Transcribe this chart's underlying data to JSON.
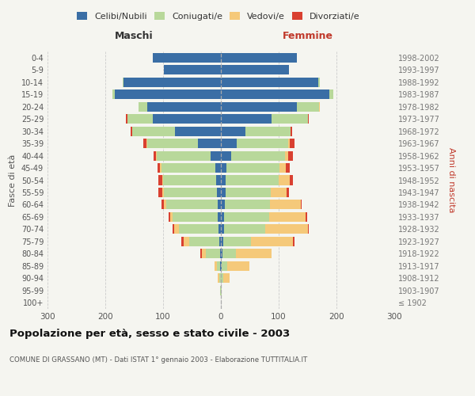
{
  "age_groups": [
    "100+",
    "95-99",
    "90-94",
    "85-89",
    "80-84",
    "75-79",
    "70-74",
    "65-69",
    "60-64",
    "55-59",
    "50-54",
    "45-49",
    "40-44",
    "35-39",
    "30-34",
    "25-29",
    "20-24",
    "15-19",
    "10-14",
    "5-9",
    "0-4"
  ],
  "birth_years": [
    "≤ 1902",
    "1903-1907",
    "1908-1912",
    "1913-1917",
    "1918-1922",
    "1923-1927",
    "1928-1932",
    "1933-1937",
    "1938-1942",
    "1943-1947",
    "1948-1952",
    "1953-1957",
    "1958-1962",
    "1963-1967",
    "1968-1972",
    "1973-1977",
    "1978-1982",
    "1983-1987",
    "1988-1992",
    "1993-1997",
    "1998-2002"
  ],
  "males_celibi": [
    0,
    0,
    0,
    1,
    2,
    3,
    4,
    5,
    6,
    7,
    8,
    10,
    18,
    40,
    80,
    118,
    128,
    183,
    168,
    98,
    118
  ],
  "males_coniugati": [
    0,
    1,
    3,
    6,
    24,
    52,
    68,
    78,
    88,
    92,
    92,
    93,
    93,
    88,
    73,
    43,
    14,
    4,
    2,
    0,
    0
  ],
  "males_vedovi": [
    0,
    0,
    2,
    4,
    7,
    9,
    9,
    5,
    4,
    3,
    2,
    2,
    1,
    1,
    0,
    1,
    0,
    0,
    0,
    0,
    0
  ],
  "males_divorziati": [
    0,
    0,
    0,
    0,
    2,
    4,
    3,
    3,
    5,
    6,
    6,
    5,
    4,
    5,
    3,
    2,
    0,
    0,
    0,
    0,
    0
  ],
  "females_nubili": [
    0,
    0,
    0,
    2,
    3,
    4,
    5,
    6,
    7,
    8,
    8,
    10,
    18,
    28,
    42,
    88,
    132,
    188,
    168,
    118,
    132
  ],
  "females_coniugate": [
    0,
    1,
    4,
    9,
    23,
    48,
    72,
    78,
    78,
    78,
    92,
    92,
    93,
    88,
    78,
    62,
    38,
    7,
    3,
    0,
    0
  ],
  "females_vedove": [
    0,
    1,
    11,
    38,
    62,
    73,
    73,
    63,
    53,
    28,
    19,
    11,
    5,
    3,
    0,
    1,
    1,
    0,
    0,
    0,
    0
  ],
  "females_divorziate": [
    0,
    0,
    0,
    0,
    0,
    2,
    2,
    2,
    2,
    4,
    5,
    6,
    8,
    8,
    3,
    1,
    0,
    0,
    0,
    0,
    0
  ],
  "color_celibi": "#3a6ea5",
  "color_coniugati": "#b8d89a",
  "color_vedovi": "#f5c97a",
  "color_divorziati": "#d94030",
  "xlim": 300,
  "title": "Popolazione per età, sesso e stato civile - 2003",
  "subtitle": "COMUNE DI GRASSANO (MT) - Dati ISTAT 1° gennaio 2003 - Elaborazione TUTTITALIA.IT",
  "label_maschi": "Maschi",
  "label_femmine": "Femmine",
  "ylabel_left": "Fasce di età",
  "ylabel_right": "Anni di nascita",
  "legend_celibi": "Celibi/Nubili",
  "legend_coniugati": "Coniugati/e",
  "legend_vedovi": "Vedovi/e",
  "legend_divorziati": "Divorziati/e",
  "background_color": "#f5f5f0"
}
